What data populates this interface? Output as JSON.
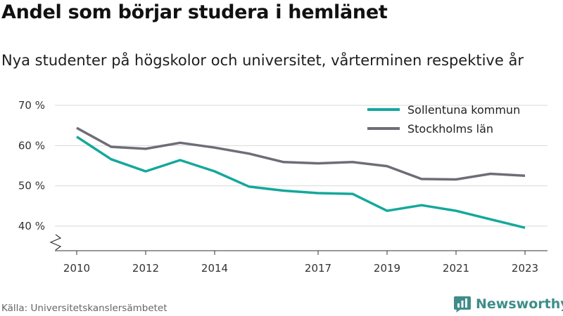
{
  "title": "Andel som börjar studera i hemlänet",
  "subtitle": "Nya studenter på högskolor och universitet, vårterminen respektive år",
  "source": "Källa: Universitetskanslersämbetet",
  "brand": {
    "name": "Newsworthy",
    "color": "#3e8d8a",
    "icon": "newsworthy-logo-icon"
  },
  "chart_data": {
    "type": "line",
    "x": [
      2010,
      2011,
      2012,
      2013,
      2014,
      2015,
      2016,
      2017,
      2018,
      2019,
      2020,
      2021,
      2022,
      2023
    ],
    "x_ticks": [
      2010,
      2012,
      2014,
      2017,
      2019,
      2021,
      2023
    ],
    "y_ticks": [
      40,
      50,
      60,
      70
    ],
    "y_tick_labels": [
      "40 %",
      "50 %",
      "60 %",
      "70 %"
    ],
    "ylim": [
      37,
      70
    ],
    "y_axis_break": true,
    "grid": "horizontal",
    "legend_position": "top-right",
    "series": [
      {
        "name": "Sollentuna kommun",
        "color": "#14a89c",
        "values": [
          62.2,
          56.6,
          53.6,
          56.4,
          53.6,
          49.8,
          48.8,
          48.2,
          48.0,
          43.8,
          45.2,
          43.8,
          41.7,
          39.6
        ]
      },
      {
        "name": "Stockholms län",
        "color": "#6e6d77",
        "values": [
          64.4,
          59.7,
          59.2,
          60.7,
          59.5,
          58.0,
          55.9,
          55.6,
          55.9,
          54.9,
          51.7,
          51.6,
          53.0,
          52.5
        ]
      }
    ]
  }
}
